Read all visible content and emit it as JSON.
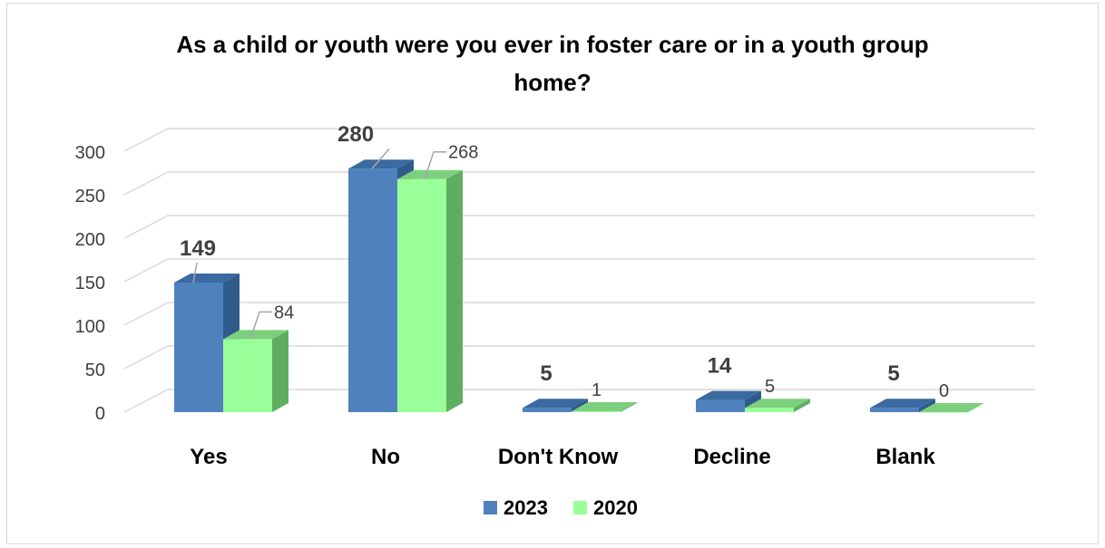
{
  "chart_data": {
    "type": "bar",
    "title_lines": [
      "As a child or youth were you ever in foster care or in a youth group",
      "home?"
    ],
    "categories": [
      "Yes",
      "No",
      "Don't Know",
      "Decline",
      "Blank"
    ],
    "series": [
      {
        "name": "2023",
        "values": [
          149,
          280,
          5,
          14,
          5
        ],
        "labels": [
          "149",
          "280",
          "5",
          "14",
          "5"
        ]
      },
      {
        "name": "2020",
        "values": [
          84,
          268,
          1,
          5,
          0
        ],
        "labels": [
          "84",
          "268",
          "1",
          "5",
          "0"
        ]
      }
    ],
    "ylim": [
      0,
      300
    ],
    "yticks": [
      0,
      50,
      100,
      150,
      200,
      250,
      300
    ],
    "ytick_labels": [
      "0",
      "50",
      "100",
      "150",
      "200",
      "250",
      "300"
    ],
    "grid": true,
    "legend": "bottom",
    "three_d": true,
    "colors": {
      "2023_front": "#4f81bd",
      "2023_side": "#2f5b8a",
      "2023_top": "#3a6aa0",
      "2020_front": "#99ff99",
      "2020_side": "#5fae5f",
      "2020_top": "#7ccf7c",
      "grid": "#d9d9d9",
      "label": "#404040"
    }
  }
}
